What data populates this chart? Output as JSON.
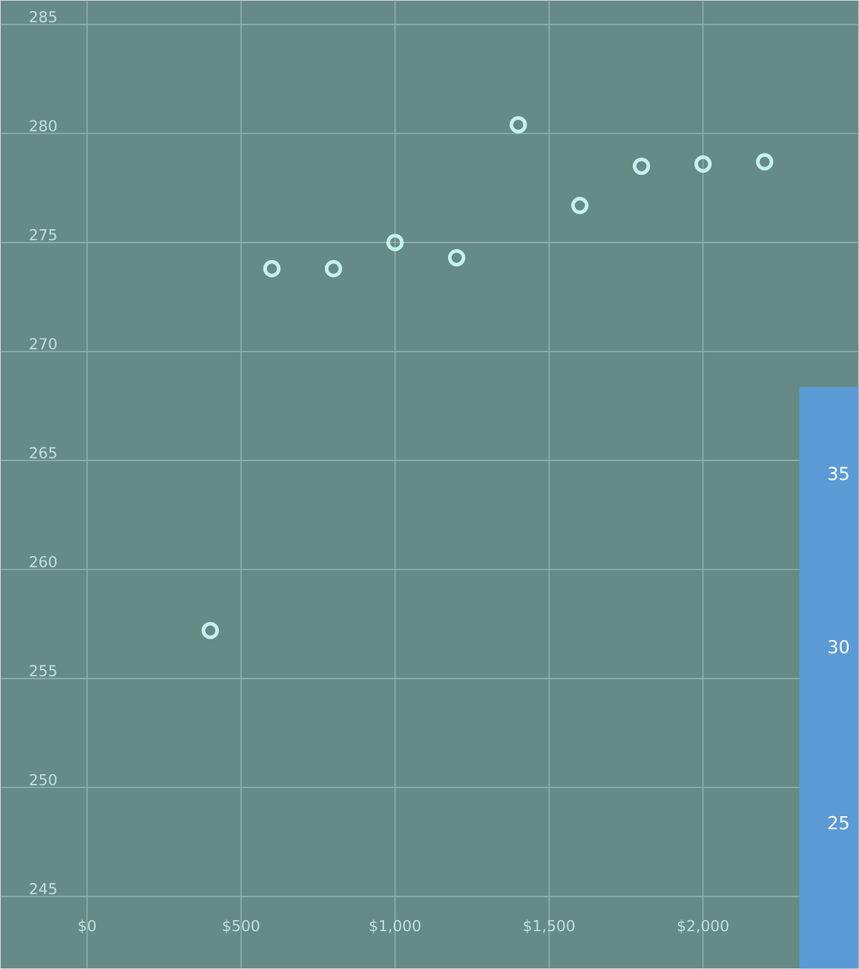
{
  "chart_data": [
    {
      "type": "scatter",
      "x": [
        400,
        600,
        800,
        1000,
        1200,
        1400,
        1600,
        1800,
        2000,
        2200
      ],
      "values": [
        257.2,
        273.8,
        273.8,
        275.0,
        274.3,
        280.4,
        276.7,
        278.5,
        278.6,
        278.7
      ],
      "color": "#c5f2ef",
      "marker": "circle",
      "grid": true,
      "xlim": [
        -281,
        2505
      ],
      "ylim": [
        241.7,
        286.1
      ],
      "xticks": [
        {
          "value": 0,
          "label": "$0"
        },
        {
          "value": 500,
          "label": "$500"
        },
        {
          "value": 1000,
          "label": "$1,000"
        },
        {
          "value": 1500,
          "label": "$1,500"
        },
        {
          "value": 2000,
          "label": "$2,000"
        }
      ],
      "yticks": [
        245,
        250,
        255,
        260,
        265,
        270,
        275,
        280,
        285
      ]
    },
    {
      "type": "other",
      "annotations": [
        "35",
        "30",
        "25"
      ]
    }
  ]
}
